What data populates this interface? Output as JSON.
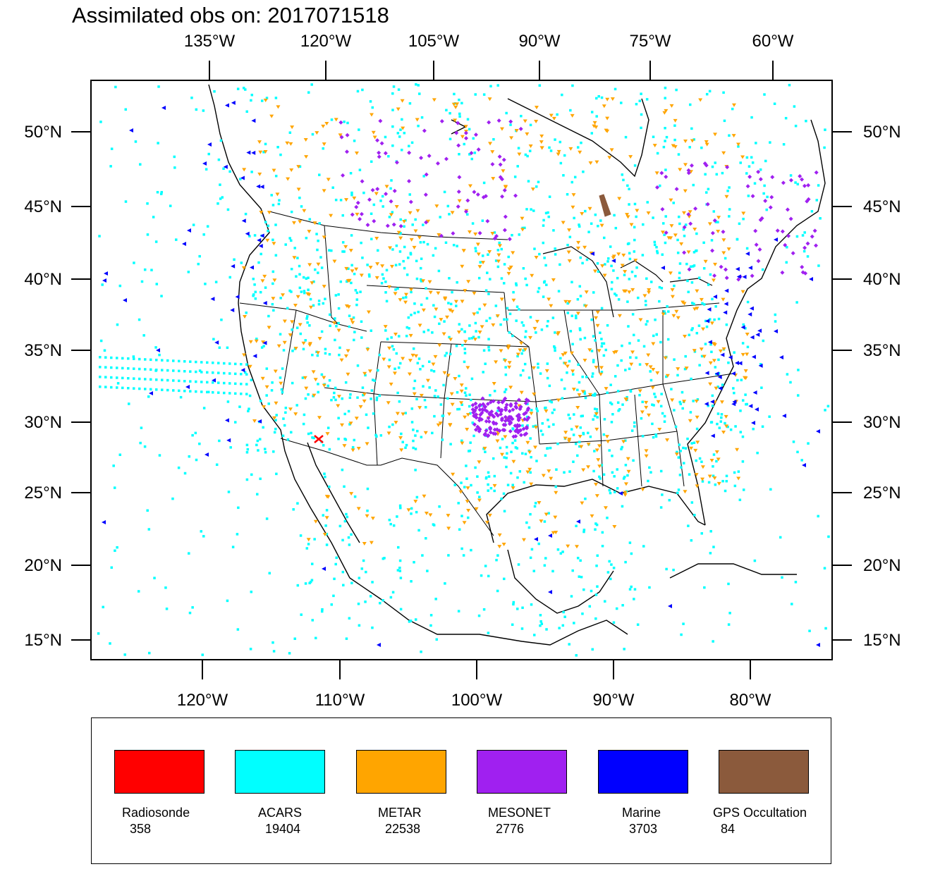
{
  "title": "Assimilated obs on: 2017071518",
  "axes": {
    "top_lon_labels": [
      "135°W",
      "120°W",
      "105°W",
      "90°W",
      "75°W",
      "60°W"
    ],
    "bottom_lon_labels": [
      "120°W",
      "110°W",
      "100°W",
      "90°W",
      "80°W"
    ],
    "lat_labels": [
      "50°N",
      "45°N",
      "40°N",
      "35°N",
      "30°N",
      "25°N",
      "20°N",
      "15°N"
    ]
  },
  "legend": [
    {
      "name": "Radiosonde",
      "count": "358",
      "color": "#ff0000"
    },
    {
      "name": "ACARS",
      "count": "19404",
      "color": "#00ffff"
    },
    {
      "name": "METAR",
      "count": "22538",
      "color": "#ffa500"
    },
    {
      "name": "MESONET",
      "count": "2776",
      "color": "#a020f0"
    },
    {
      "name": "Marine",
      "count": "3703",
      "color": "#0000ff"
    },
    {
      "name": "GPS Occultation",
      "count": "84",
      "color": "#8b5a3c"
    }
  ]
}
